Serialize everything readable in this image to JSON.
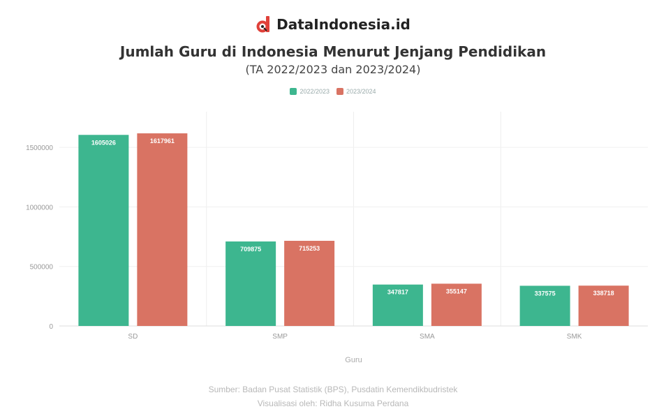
{
  "brand": {
    "name": "DataIndonesia.id",
    "logo_letter": "d",
    "logo_color": "#e0413a"
  },
  "title": "Jumlah Guru di Indonesia Menurut Jenjang Pendidikan",
  "subtitle": "(TA 2022/2023 dan 2023/2024)",
  "source": {
    "line1": "Sumber: Badan Pusat Statistik (BPS), Pusdatin Kemendikbudristek",
    "line2": "Visualisasi oleh: Ridha Kusuma Perdana"
  },
  "chart_data": {
    "type": "bar",
    "xlabel": "Guru",
    "ylabel": "",
    "categories": [
      "SD",
      "SMP",
      "SMA",
      "SMK"
    ],
    "ylim": [
      0,
      1800000
    ],
    "yticks": [
      0,
      500000,
      1000000,
      1500000
    ],
    "ytick_labels": [
      "0",
      "500000",
      "1000000",
      "1500000"
    ],
    "grid": true,
    "legend_position": "top-center",
    "series": [
      {
        "name": "2022/2023",
        "color": "#3db68f",
        "values": [
          1605026,
          709875,
          347817,
          337575
        ]
      },
      {
        "name": "2023/2024",
        "color": "#d97363",
        "values": [
          1617961,
          715253,
          355147,
          338718
        ]
      }
    ]
  }
}
